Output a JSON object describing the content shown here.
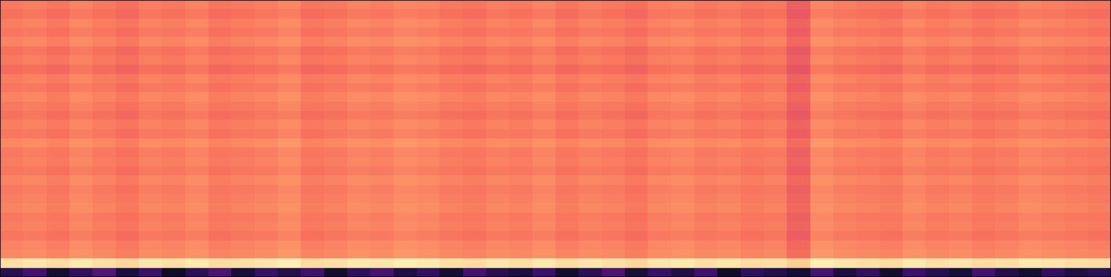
{
  "chart_data": {
    "type": "heatmap",
    "color": "magma",
    "zlim": [
      0,
      100
    ],
    "tick_labels": false,
    "cells": [
      [
        72,
        73,
        71,
        74,
        72,
        70,
        73,
        72,
        74,
        71,
        72,
        73,
        75,
        71,
        72,
        74,
        73,
        75,
        74,
        72,
        71,
        73,
        72,
        74,
        71,
        73,
        72,
        70,
        73,
        74,
        72,
        73,
        71,
        72,
        66,
        75,
        73,
        72,
        71,
        74,
        72,
        73,
        71,
        72,
        74,
        73,
        72,
        71
      ],
      [
        70,
        71,
        69,
        72,
        70,
        68,
        71,
        70,
        72,
        69,
        70,
        71,
        73,
        69,
        70,
        72,
        71,
        73,
        72,
        70,
        69,
        71,
        70,
        72,
        69,
        71,
        70,
        68,
        71,
        72,
        70,
        71,
        69,
        70,
        64,
        73,
        71,
        70,
        69,
        72,
        70,
        71,
        69,
        70,
        72,
        71,
        70,
        69
      ],
      [
        73,
        74,
        72,
        75,
        73,
        71,
        74,
        73,
        75,
        72,
        73,
        74,
        76,
        72,
        73,
        75,
        74,
        76,
        75,
        73,
        72,
        74,
        73,
        75,
        72,
        74,
        73,
        71,
        74,
        75,
        73,
        74,
        72,
        73,
        67,
        76,
        74,
        73,
        72,
        75,
        73,
        74,
        72,
        73,
        75,
        74,
        73,
        72
      ],
      [
        71,
        72,
        70,
        73,
        71,
        69,
        72,
        71,
        73,
        70,
        71,
        72,
        74,
        70,
        71,
        73,
        72,
        74,
        73,
        71,
        70,
        72,
        71,
        73,
        70,
        72,
        71,
        69,
        72,
        73,
        71,
        72,
        70,
        71,
        65,
        74,
        72,
        71,
        70,
        73,
        71,
        72,
        70,
        71,
        73,
        72,
        71,
        70
      ],
      [
        74,
        75,
        73,
        76,
        74,
        72,
        75,
        74,
        76,
        73,
        74,
        75,
        77,
        73,
        74,
        76,
        75,
        77,
        76,
        74,
        73,
        75,
        74,
        76,
        73,
        75,
        74,
        72,
        75,
        76,
        74,
        75,
        73,
        74,
        68,
        77,
        75,
        74,
        73,
        76,
        74,
        75,
        73,
        74,
        76,
        75,
        74,
        73
      ],
      [
        70,
        71,
        69,
        72,
        70,
        68,
        71,
        70,
        72,
        69,
        70,
        71,
        73,
        69,
        70,
        72,
        71,
        73,
        72,
        70,
        69,
        71,
        70,
        72,
        69,
        71,
        70,
        68,
        71,
        72,
        70,
        71,
        69,
        70,
        64,
        73,
        71,
        70,
        69,
        72,
        70,
        71,
        69,
        70,
        72,
        71,
        70,
        69
      ],
      [
        72,
        73,
        71,
        74,
        72,
        70,
        73,
        72,
        74,
        71,
        72,
        73,
        75,
        71,
        72,
        74,
        73,
        75,
        74,
        72,
        71,
        73,
        72,
        74,
        71,
        73,
        72,
        70,
        73,
        74,
        72,
        73,
        71,
        72,
        66,
        75,
        73,
        72,
        71,
        74,
        72,
        73,
        71,
        72,
        74,
        73,
        72,
        71
      ],
      [
        69,
        70,
        68,
        71,
        69,
        67,
        70,
        69,
        71,
        68,
        69,
        70,
        72,
        68,
        69,
        71,
        70,
        72,
        71,
        69,
        68,
        70,
        69,
        71,
        68,
        70,
        69,
        67,
        70,
        71,
        69,
        70,
        68,
        69,
        63,
        72,
        70,
        69,
        68,
        71,
        69,
        70,
        68,
        69,
        71,
        70,
        69,
        68
      ],
      [
        73,
        74,
        72,
        75,
        73,
        71,
        74,
        73,
        75,
        72,
        73,
        74,
        76,
        72,
        73,
        75,
        74,
        76,
        75,
        73,
        72,
        74,
        73,
        75,
        72,
        74,
        73,
        71,
        74,
        75,
        73,
        74,
        72,
        73,
        67,
        76,
        74,
        73,
        72,
        75,
        73,
        74,
        72,
        73,
        75,
        74,
        73,
        72
      ],
      [
        71,
        72,
        70,
        73,
        71,
        69,
        72,
        71,
        73,
        70,
        71,
        72,
        74,
        70,
        71,
        73,
        72,
        74,
        73,
        71,
        70,
        72,
        71,
        73,
        70,
        72,
        71,
        69,
        72,
        73,
        71,
        72,
        70,
        71,
        65,
        74,
        72,
        71,
        70,
        73,
        71,
        72,
        70,
        71,
        73,
        72,
        71,
        70
      ],
      [
        74,
        75,
        73,
        76,
        74,
        72,
        75,
        74,
        76,
        73,
        74,
        75,
        77,
        73,
        74,
        76,
        75,
        77,
        76,
        74,
        73,
        75,
        74,
        76,
        73,
        75,
        74,
        72,
        75,
        76,
        74,
        75,
        73,
        74,
        68,
        77,
        75,
        74,
        73,
        76,
        74,
        75,
        73,
        74,
        76,
        75,
        74,
        73
      ],
      [
        72,
        73,
        71,
        74,
        72,
        70,
        73,
        72,
        74,
        71,
        72,
        73,
        75,
        71,
        72,
        74,
        73,
        75,
        74,
        72,
        71,
        73,
        72,
        74,
        71,
        73,
        72,
        70,
        73,
        74,
        72,
        73,
        71,
        72,
        66,
        75,
        73,
        72,
        71,
        74,
        72,
        73,
        71,
        72,
        74,
        73,
        72,
        71
      ],
      [
        70,
        71,
        69,
        72,
        70,
        68,
        71,
        70,
        72,
        69,
        70,
        71,
        73,
        69,
        70,
        72,
        71,
        73,
        72,
        70,
        69,
        71,
        70,
        72,
        69,
        71,
        70,
        68,
        71,
        72,
        70,
        71,
        69,
        70,
        64,
        73,
        71,
        70,
        69,
        72,
        70,
        71,
        69,
        70,
        72,
        71,
        70,
        69
      ],
      [
        73,
        74,
        72,
        75,
        73,
        71,
        74,
        73,
        75,
        72,
        73,
        74,
        76,
        72,
        73,
        75,
        74,
        76,
        75,
        73,
        72,
        74,
        73,
        75,
        72,
        74,
        73,
        71,
        74,
        75,
        73,
        74,
        72,
        73,
        67,
        76,
        74,
        73,
        72,
        75,
        73,
        74,
        72,
        73,
        75,
        74,
        73,
        72
      ],
      [
        71,
        72,
        70,
        73,
        71,
        69,
        72,
        71,
        73,
        70,
        71,
        72,
        74,
        70,
        71,
        73,
        72,
        74,
        73,
        71,
        70,
        72,
        71,
        73,
        70,
        72,
        71,
        69,
        72,
        73,
        71,
        72,
        70,
        71,
        65,
        74,
        72,
        71,
        70,
        73,
        71,
        72,
        70,
        71,
        73,
        72,
        71,
        70
      ],
      [
        75,
        76,
        74,
        77,
        75,
        73,
        76,
        75,
        77,
        74,
        75,
        76,
        78,
        74,
        75,
        77,
        76,
        78,
        77,
        75,
        74,
        76,
        75,
        77,
        74,
        76,
        75,
        73,
        76,
        77,
        75,
        76,
        74,
        75,
        69,
        78,
        76,
        75,
        74,
        77,
        75,
        76,
        74,
        75,
        77,
        76,
        75,
        74
      ],
      [
        72,
        73,
        71,
        74,
        72,
        70,
        73,
        72,
        74,
        71,
        72,
        73,
        75,
        71,
        72,
        74,
        73,
        75,
        74,
        72,
        71,
        73,
        72,
        74,
        71,
        73,
        72,
        70,
        73,
        74,
        72,
        73,
        71,
        72,
        66,
        75,
        73,
        72,
        71,
        74,
        72,
        73,
        71,
        72,
        74,
        73,
        72,
        71
      ],
      [
        73,
        74,
        72,
        75,
        73,
        71,
        74,
        73,
        75,
        72,
        73,
        74,
        76,
        72,
        73,
        75,
        74,
        76,
        75,
        73,
        72,
        74,
        73,
        75,
        72,
        74,
        73,
        71,
        74,
        75,
        73,
        74,
        72,
        73,
        67,
        76,
        74,
        73,
        72,
        75,
        73,
        74,
        72,
        73,
        75,
        74,
        73,
        72
      ],
      [
        71,
        72,
        70,
        73,
        71,
        69,
        72,
        71,
        73,
        70,
        71,
        72,
        74,
        70,
        71,
        73,
        72,
        74,
        73,
        71,
        70,
        72,
        71,
        73,
        70,
        72,
        71,
        69,
        72,
        73,
        71,
        72,
        70,
        71,
        65,
        74,
        72,
        71,
        70,
        73,
        71,
        72,
        70,
        71,
        73,
        72,
        71,
        70
      ],
      [
        74,
        75,
        73,
        76,
        74,
        72,
        75,
        74,
        76,
        73,
        74,
        75,
        77,
        73,
        74,
        76,
        75,
        77,
        76,
        74,
        73,
        75,
        74,
        76,
        73,
        75,
        74,
        72,
        75,
        76,
        74,
        75,
        73,
        74,
        68,
        77,
        75,
        74,
        73,
        76,
        74,
        75,
        73,
        74,
        76,
        75,
        74,
        73
      ],
      [
        72,
        73,
        71,
        74,
        72,
        70,
        73,
        72,
        74,
        71,
        72,
        73,
        75,
        71,
        72,
        74,
        73,
        75,
        74,
        72,
        71,
        73,
        72,
        74,
        71,
        73,
        72,
        70,
        73,
        74,
        72,
        73,
        71,
        72,
        66,
        75,
        73,
        72,
        71,
        74,
        72,
        73,
        71,
        72,
        74,
        73,
        72,
        71
      ],
      [
        73,
        74,
        72,
        75,
        73,
        71,
        74,
        73,
        75,
        72,
        73,
        74,
        76,
        72,
        73,
        75,
        74,
        76,
        75,
        73,
        72,
        74,
        73,
        75,
        72,
        74,
        73,
        71,
        74,
        75,
        73,
        74,
        72,
        73,
        67,
        76,
        74,
        73,
        72,
        75,
        73,
        74,
        72,
        73,
        75,
        74,
        73,
        72
      ],
      [
        74,
        75,
        73,
        76,
        74,
        72,
        75,
        74,
        76,
        73,
        74,
        75,
        77,
        73,
        74,
        76,
        75,
        77,
        76,
        74,
        73,
        75,
        74,
        76,
        73,
        75,
        74,
        72,
        75,
        76,
        74,
        75,
        73,
        74,
        68,
        77,
        75,
        74,
        73,
        76,
        74,
        75,
        73,
        74,
        76,
        75,
        74,
        73
      ],
      [
        72,
        73,
        71,
        74,
        72,
        70,
        73,
        72,
        74,
        71,
        72,
        73,
        75,
        71,
        72,
        74,
        73,
        75,
        74,
        72,
        71,
        73,
        72,
        74,
        71,
        73,
        72,
        70,
        73,
        74,
        72,
        73,
        71,
        72,
        66,
        75,
        73,
        72,
        71,
        74,
        72,
        73,
        71,
        72,
        74,
        73,
        72,
        71
      ],
      [
        73,
        74,
        72,
        75,
        73,
        71,
        74,
        73,
        75,
        72,
        73,
        74,
        76,
        72,
        73,
        75,
        74,
        76,
        75,
        73,
        72,
        74,
        73,
        75,
        72,
        74,
        73,
        71,
        74,
        75,
        73,
        74,
        72,
        73,
        67,
        76,
        74,
        73,
        72,
        75,
        73,
        74,
        72,
        73,
        75,
        74,
        73,
        72
      ],
      [
        71,
        72,
        70,
        73,
        71,
        69,
        72,
        71,
        73,
        70,
        71,
        72,
        74,
        70,
        71,
        73,
        72,
        74,
        73,
        71,
        70,
        72,
        71,
        73,
        70,
        72,
        71,
        69,
        72,
        73,
        71,
        72,
        70,
        71,
        65,
        74,
        72,
        71,
        70,
        73,
        71,
        72,
        70,
        71,
        73,
        72,
        71,
        70
      ],
      [
        74,
        75,
        73,
        76,
        74,
        72,
        75,
        74,
        76,
        73,
        74,
        75,
        77,
        73,
        74,
        76,
        75,
        77,
        76,
        74,
        73,
        75,
        74,
        76,
        73,
        75,
        74,
        72,
        75,
        76,
        74,
        75,
        73,
        74,
        68,
        77,
        75,
        74,
        73,
        76,
        74,
        75,
        73,
        74,
        76,
        75,
        74,
        73
      ],
      [
        75,
        76,
        74,
        77,
        75,
        73,
        76,
        75,
        77,
        74,
        75,
        76,
        78,
        74,
        75,
        77,
        76,
        78,
        77,
        75,
        74,
        76,
        75,
        77,
        74,
        76,
        75,
        73,
        76,
        77,
        75,
        76,
        74,
        75,
        69,
        78,
        76,
        75,
        74,
        77,
        75,
        76,
        74,
        75,
        77,
        76,
        75,
        74
      ],
      [
        94,
        95,
        93,
        96,
        94,
        92,
        95,
        94,
        96,
        93,
        94,
        95,
        97,
        93,
        94,
        96,
        95,
        97,
        96,
        94,
        93,
        95,
        94,
        96,
        93,
        95,
        94,
        92,
        95,
        96,
        94,
        95,
        93,
        94,
        90,
        97,
        95,
        94,
        93,
        96,
        94,
        95,
        93,
        94,
        96,
        95,
        94,
        93
      ],
      [
        15,
        22,
        10,
        18,
        25,
        12,
        20,
        8,
        16,
        24,
        11,
        19,
        14,
        21,
        9,
        17,
        23,
        13,
        18,
        10,
        22,
        15,
        12,
        20,
        9,
        16,
        24,
        11,
        19,
        13,
        21,
        8,
        17,
        14,
        10,
        23,
        12,
        18,
        9,
        20,
        15,
        11,
        22,
        14,
        10,
        18,
        13,
        16
      ]
    ]
  }
}
